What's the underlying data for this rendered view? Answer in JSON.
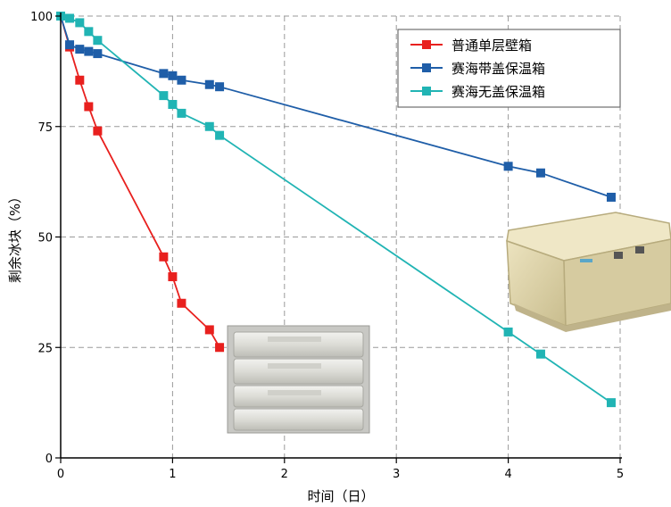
{
  "chart_data": {
    "type": "line",
    "title": "",
    "xlabel": "时间（日）",
    "ylabel": "剩余冰块（%）",
    "xlim": [
      0,
      5
    ],
    "ylim": [
      0,
      100
    ],
    "x_ticks": [
      "0",
      "1",
      "2",
      "3",
      "4",
      "5"
    ],
    "y_ticks": [
      "0",
      "25",
      "50",
      "75",
      "100"
    ],
    "grid": true,
    "legend_position": "top-right",
    "series": [
      {
        "name": "普通单层壁箱",
        "color": "#e8201e",
        "points": [
          [
            0,
            100
          ],
          [
            0.08,
            93
          ],
          [
            0.17,
            85.5
          ],
          [
            0.25,
            79.5
          ],
          [
            0.33,
            74
          ],
          [
            0.92,
            45.5
          ],
          [
            1.0,
            41
          ],
          [
            1.08,
            35
          ],
          [
            1.33,
            29
          ],
          [
            1.42,
            25
          ]
        ]
      },
      {
        "name": "赛海带盖保温箱",
        "color": "#1f5ea8",
        "points": [
          [
            0,
            100
          ],
          [
            0.08,
            93.5
          ],
          [
            0.17,
            92.5
          ],
          [
            0.25,
            92
          ],
          [
            0.33,
            91.5
          ],
          [
            0.92,
            87
          ],
          [
            1.0,
            86.5
          ],
          [
            1.08,
            85.5
          ],
          [
            1.33,
            84.5
          ],
          [
            1.42,
            84
          ],
          [
            4.0,
            66
          ],
          [
            4.29,
            64.5
          ],
          [
            4.92,
            59
          ]
        ]
      },
      {
        "name": "赛海无盖保温箱",
        "color": "#21b4b4",
        "points": [
          [
            0,
            100
          ],
          [
            0.08,
            99.5
          ],
          [
            0.17,
            98.5
          ],
          [
            0.25,
            96.5
          ],
          [
            0.33,
            94.5
          ],
          [
            0.92,
            82
          ],
          [
            1.0,
            80
          ],
          [
            1.08,
            78
          ],
          [
            1.33,
            75
          ],
          [
            1.42,
            73
          ],
          [
            4.0,
            28.5
          ],
          [
            4.29,
            23.5
          ],
          [
            4.92,
            12.5
          ]
        ]
      }
    ]
  },
  "photos": [
    {
      "name": "stacked-crates-photo"
    },
    {
      "name": "insulated-box-photo"
    }
  ]
}
